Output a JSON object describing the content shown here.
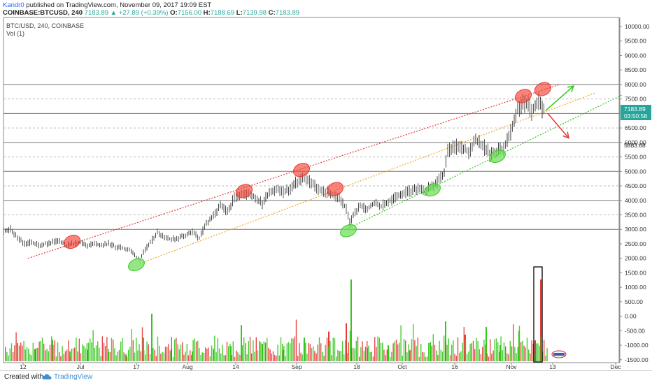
{
  "header": {
    "author": "Kandr0",
    "published_text": "published on TradingView.com, November 09, 2017 19:09 EST",
    "symbol_text": "COINBASE:BTCUSD, 240",
    "last_price": "7183.89",
    "change_text": "▲ +27.89 (+0.39%)",
    "open_label": "O:",
    "open_value": "7156.00",
    "high_label": "H:",
    "high_value": "7188.69",
    "low_label": "L:",
    "low_value": "7139.98",
    "close_label": "C:",
    "close_value": "7183.89"
  },
  "chart_data": {
    "type": "line",
    "title": "BTC/USD, 240, COINBASE",
    "volume_label": "Vol (1)",
    "x_ticks": [
      "12",
      "Jul",
      "17",
      "Aug",
      "14",
      "Sep",
      "18",
      "Oct",
      "16",
      "Nov",
      "13",
      "Dec"
    ],
    "y_ticks": [
      "10000.00",
      "9500.00",
      "9000.00",
      "8500.00",
      "8000.00",
      "7500.00",
      "7000.00",
      "6500.00",
      "6000.00",
      "5500.00",
      "5000.00",
      "4500.00",
      "4000.00",
      "3500.00",
      "3000.00",
      "2500.00",
      "2000.00",
      "1500.00",
      "1000.00",
      "500.00",
      "0.00",
      "-500.00",
      "-1000.00",
      "-1500.00"
    ],
    "ylim": [
      -1500,
      10000
    ],
    "price_label": "7183.89",
    "countdown_label": "03:50:58",
    "level_label": "5883.68",
    "horizontal_levels_solid": [
      8000,
      7000,
      6000,
      5000,
      4000,
      3000
    ],
    "horizontal_levels_dashed": [
      7500,
      6500,
      5500,
      4500,
      3500
    ],
    "colors": {
      "up": "#26a69a",
      "down": "#ef5350",
      "vol_up": "#34c81c",
      "vol_down": "#e53935",
      "upper_channel": "#e53935",
      "middle_channel": "#f5a623",
      "lower_channel": "#34c81c",
      "price_axis_bg": "#26a69a"
    },
    "price_path": [
      [
        0,
        2950
      ],
      [
        10,
        3000
      ],
      [
        20,
        2700
      ],
      [
        30,
        2500
      ],
      [
        40,
        2550
      ],
      [
        50,
        2450
      ],
      [
        60,
        2500
      ],
      [
        70,
        2550
      ],
      [
        80,
        2600
      ],
      [
        90,
        2450
      ],
      [
        100,
        2500
      ],
      [
        110,
        2550
      ],
      [
        120,
        2450
      ],
      [
        130,
        2500
      ],
      [
        140,
        2450
      ],
      [
        150,
        2500
      ],
      [
        160,
        2400
      ],
      [
        170,
        2350
      ],
      [
        180,
        2300
      ],
      [
        190,
        2050
      ],
      [
        195,
        1950
      ],
      [
        200,
        2200
      ],
      [
        210,
        2550
      ],
      [
        220,
        2900
      ],
      [
        230,
        2750
      ],
      [
        240,
        2650
      ],
      [
        250,
        2700
      ],
      [
        260,
        2800
      ],
      [
        270,
        2900
      ],
      [
        280,
        2700
      ],
      [
        290,
        3200
      ],
      [
        300,
        3450
      ],
      [
        310,
        3800
      ],
      [
        320,
        3600
      ],
      [
        330,
        4100
      ],
      [
        340,
        4250
      ],
      [
        350,
        4200
      ],
      [
        360,
        4100
      ],
      [
        370,
        3900
      ],
      [
        380,
        4300
      ],
      [
        390,
        4400
      ],
      [
        400,
        4300
      ],
      [
        410,
        4400
      ],
      [
        420,
        4650
      ],
      [
        430,
        4800
      ],
      [
        440,
        4600
      ],
      [
        450,
        4400
      ],
      [
        460,
        4300
      ],
      [
        470,
        4200
      ],
      [
        480,
        4100
      ],
      [
        490,
        3700
      ],
      [
        495,
        3250
      ],
      [
        500,
        3500
      ],
      [
        510,
        3800
      ],
      [
        520,
        3700
      ],
      [
        530,
        3900
      ],
      [
        540,
        3800
      ],
      [
        550,
        3950
      ],
      [
        560,
        4100
      ],
      [
        570,
        4250
      ],
      [
        580,
        4300
      ],
      [
        590,
        4400
      ],
      [
        600,
        4300
      ],
      [
        610,
        4450
      ],
      [
        620,
        4600
      ],
      [
        630,
        4950
      ],
      [
        635,
        5700
      ],
      [
        645,
        5850
      ],
      [
        655,
        5800
      ],
      [
        665,
        5700
      ],
      [
        675,
        6100
      ],
      [
        685,
        5900
      ],
      [
        695,
        5600
      ],
      [
        705,
        5700
      ],
      [
        715,
        5800
      ],
      [
        725,
        6300
      ],
      [
        735,
        7200
      ],
      [
        745,
        7400
      ],
      [
        755,
        7100
      ],
      [
        760,
        7300
      ],
      [
        765,
        7500
      ],
      [
        770,
        7200
      ],
      [
        775,
        7150
      ]
    ],
    "volume_bars": [
      {
        "x": 20,
        "v": 480,
        "up": true
      },
      {
        "x": 45,
        "v": 320,
        "up": false
      },
      {
        "x": 70,
        "v": 560,
        "up": true
      },
      {
        "x": 95,
        "v": 260,
        "up": true
      },
      {
        "x": 120,
        "v": 300,
        "up": false
      },
      {
        "x": 150,
        "v": 240,
        "up": true
      },
      {
        "x": 175,
        "v": 180,
        "up": true
      },
      {
        "x": 200,
        "v": 620,
        "up": true
      },
      {
        "x": 212,
        "v": 1250,
        "up": true
      },
      {
        "x": 240,
        "v": 320,
        "up": false
      },
      {
        "x": 270,
        "v": 260,
        "up": true
      },
      {
        "x": 300,
        "v": 300,
        "up": true
      },
      {
        "x": 325,
        "v": 400,
        "up": true
      },
      {
        "x": 340,
        "v": 950,
        "up": true
      },
      {
        "x": 370,
        "v": 460,
        "up": true
      },
      {
        "x": 400,
        "v": 300,
        "up": false
      },
      {
        "x": 430,
        "v": 620,
        "up": true
      },
      {
        "x": 465,
        "v": 780,
        "up": false
      },
      {
        "x": 490,
        "v": 1000,
        "up": false
      },
      {
        "x": 497,
        "v": 2150,
        "up": true
      },
      {
        "x": 520,
        "v": 350,
        "up": true
      },
      {
        "x": 550,
        "v": 420,
        "up": true
      },
      {
        "x": 580,
        "v": 280,
        "up": true
      },
      {
        "x": 610,
        "v": 500,
        "up": true
      },
      {
        "x": 632,
        "v": 1050,
        "up": true
      },
      {
        "x": 660,
        "v": 700,
        "up": false
      },
      {
        "x": 690,
        "v": 900,
        "up": true
      },
      {
        "x": 710,
        "v": 420,
        "up": true
      },
      {
        "x": 737,
        "v": 800,
        "up": true
      },
      {
        "x": 760,
        "v": 550,
        "up": false
      },
      {
        "x": 768,
        "v": 2150,
        "up": false
      }
    ],
    "channels": [
      {
        "name": "upper",
        "x1": 35,
        "y1": 2000,
        "x2": 795,
        "y2": 8000
      },
      {
        "name": "middle",
        "x1": 195,
        "y1": 1820,
        "x2": 845,
        "y2": 7700
      },
      {
        "name": "lower",
        "x1": 490,
        "y1": 3000,
        "x2": 885,
        "y2": 7650
      }
    ],
    "highs_marked": [
      [
        98,
        2570
      ],
      [
        344,
        4320
      ],
      [
        426,
        5050
      ],
      [
        474,
        4390
      ],
      [
        743,
        7600
      ],
      [
        771,
        7840
      ]
    ],
    "lows_marked": [
      [
        190,
        1780
      ],
      [
        493,
        2950
      ],
      [
        613,
        4360
      ],
      [
        706,
        5520
      ]
    ],
    "projection_arrows": [
      {
        "direction": "up",
        "from": [
          775,
          7100
        ],
        "to": [
          815,
          7950
        ]
      },
      {
        "direction": "down",
        "from": [
          778,
          7000
        ],
        "to": [
          808,
          6150
        ]
      }
    ]
  },
  "footer": {
    "created_with": "Created with",
    "brand": "TradingView"
  }
}
